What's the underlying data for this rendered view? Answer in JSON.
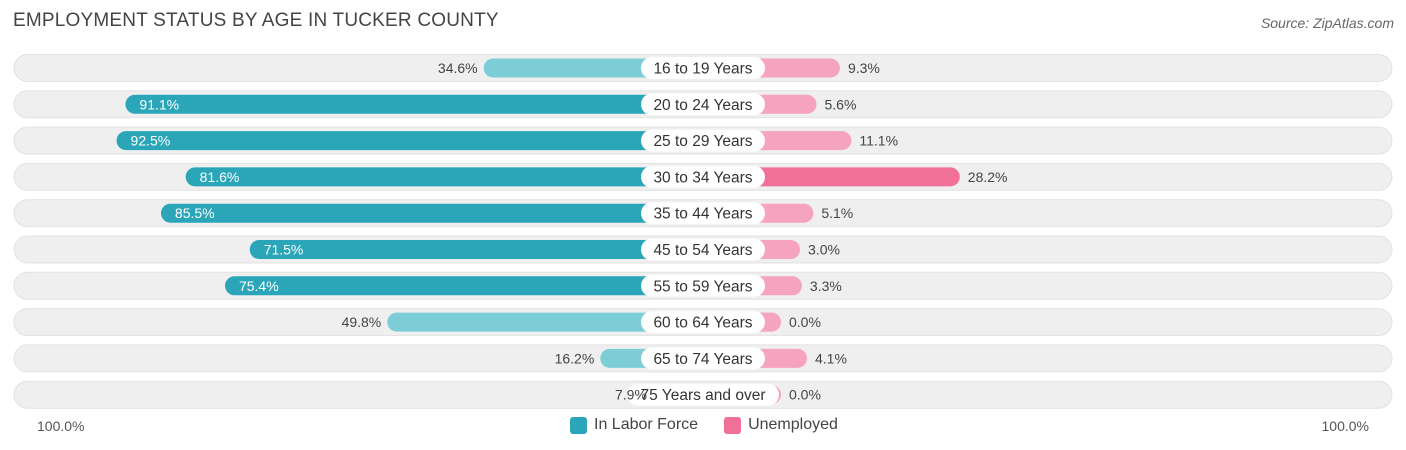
{
  "header": {
    "title": "EMPLOYMENT STATUS BY AGE IN TUCKER COUNTY",
    "source": "Source: ZipAtlas.com"
  },
  "axis": {
    "left_label": "100.0%",
    "right_label": "100.0%"
  },
  "colors": {
    "labor_force": "#2aa6b8",
    "labor_force_light": "#7dcdd7",
    "unemployed": "#f07098",
    "unemployed_light": "#f5a3bf",
    "row_background": "#efefef"
  },
  "chart_data": {
    "type": "bar",
    "title": "EMPLOYMENT STATUS BY AGE IN TUCKER COUNTY",
    "orientation": "diverging-horizontal",
    "categories": [
      "16 to 19 Years",
      "20 to 24 Years",
      "25 to 29 Years",
      "30 to 34 Years",
      "35 to 44 Years",
      "45 to 54 Years",
      "55 to 59 Years",
      "60 to 64 Years",
      "65 to 74 Years",
      "75 Years and over"
    ],
    "series": [
      {
        "name": "In Labor Force",
        "values": [
          34.6,
          91.1,
          92.5,
          81.6,
          85.5,
          71.5,
          75.4,
          49.8,
          16.2,
          7.9
        ],
        "labels": [
          "34.6%",
          "91.1%",
          "92.5%",
          "81.6%",
          "85.5%",
          "71.5%",
          "75.4%",
          "49.8%",
          "16.2%",
          "7.9%"
        ]
      },
      {
        "name": "Unemployed",
        "values": [
          9.3,
          5.6,
          11.1,
          28.2,
          5.1,
          3.0,
          3.3,
          0.0,
          4.1,
          0.0
        ],
        "labels": [
          "9.3%",
          "5.6%",
          "11.1%",
          "28.2%",
          "5.1%",
          "3.0%",
          "3.3%",
          "0.0%",
          "4.1%",
          "0.0%"
        ]
      }
    ],
    "xlim": [
      -100,
      100
    ],
    "legend_position": "bottom-center"
  }
}
